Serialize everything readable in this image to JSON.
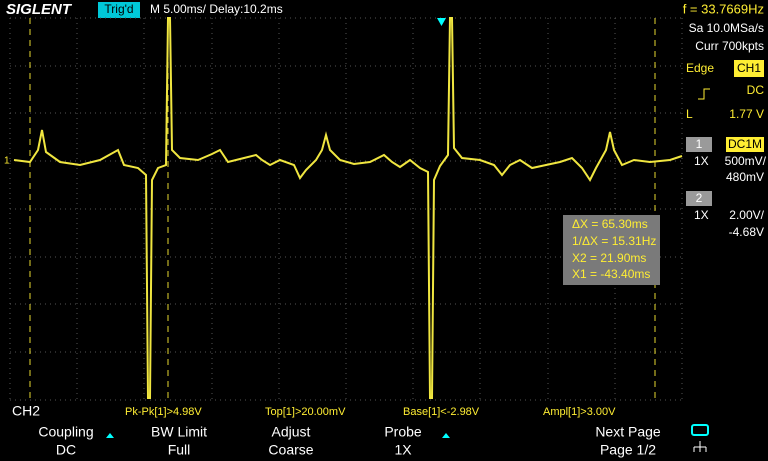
{
  "header": {
    "brand": "SIGLENT",
    "trigger_status": "Trig'd",
    "timebase": "M 5.00ms/ Delay:10.2ms",
    "frequency": "f = 33.7669Hz"
  },
  "side_panel": {
    "sample_rate": "Sa 10.0MSa/s",
    "memory": "Curr 700kpts",
    "trigger_type": "Edge",
    "trigger_source": "CH1",
    "trigger_coupling": "DC",
    "level_label": "L",
    "level": "1.77 V",
    "ch1": {
      "number": "1",
      "coupling": "DC1M",
      "probe": "1X",
      "scale": "500mV/",
      "offset": "480mV"
    },
    "ch2": {
      "number": "2",
      "probe": "1X",
      "scale": "2.00V/",
      "offset": "-4.68V"
    }
  },
  "channel_marker": "1",
  "cursors": [
    "ΔX = 65.30ms",
    "1/ΔX = 15.31Hz",
    "X2 = 21.90ms",
    "X1 = -43.40ms"
  ],
  "measurements": {
    "channel": "CH2",
    "items": [
      "Pk-Pk[1]>4.98V",
      "Top[1]>20.00mV",
      "Base[1]<-2.98V",
      "Ampl[1]>3.00V"
    ]
  },
  "menu": [
    {
      "label": "Coupling",
      "value": "DC"
    },
    {
      "label": "BW Limit",
      "value": "Full"
    },
    {
      "label": "Adjust",
      "value": "Coarse"
    },
    {
      "label": "Probe",
      "value": "1X"
    },
    {
      "label": "Next Page",
      "value": "Page 1/2"
    }
  ]
}
